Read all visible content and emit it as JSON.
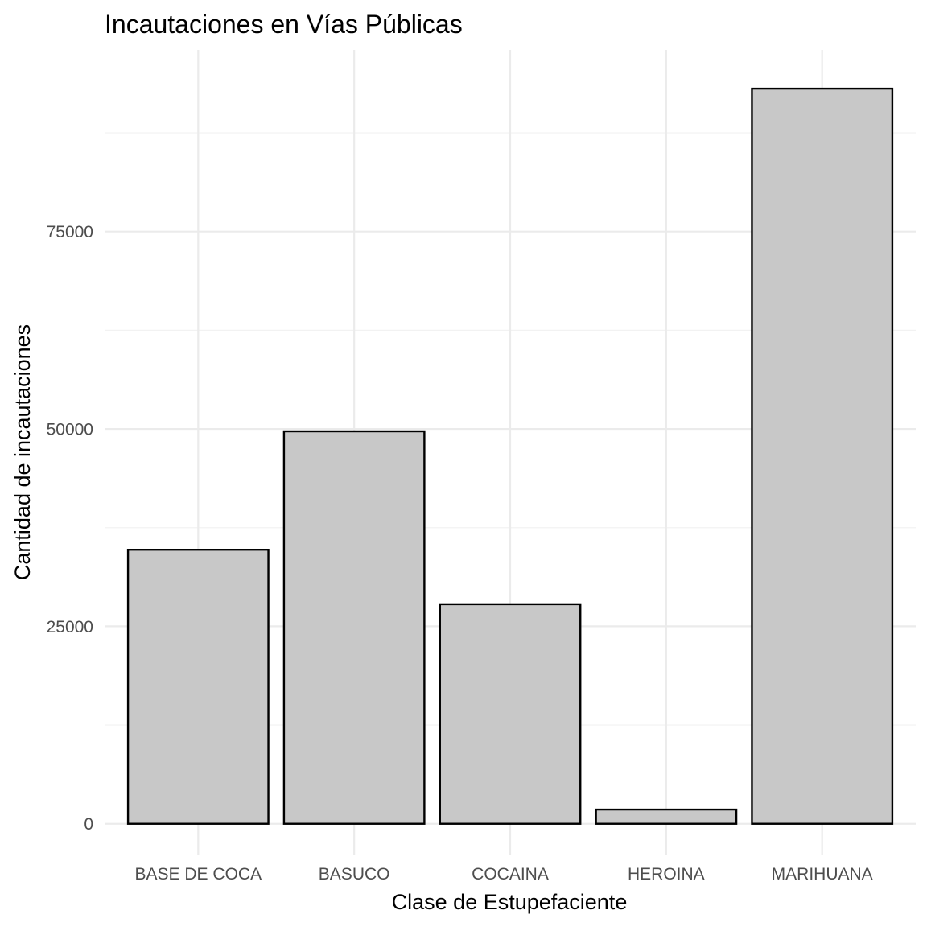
{
  "chart_data": {
    "type": "bar",
    "title": "Incautaciones en Vías Públicas",
    "xlabel": "Clase de Estupefaciente",
    "ylabel": "Cantidad de incautaciones",
    "categories": [
      "BASE DE COCA",
      "BASUCO",
      "COCAINA",
      "HEROINA",
      "MARIHUANA"
    ],
    "values": [
      34700,
      49700,
      27800,
      1800,
      93100
    ],
    "ylim": [
      -3900,
      98000
    ],
    "yticks": [
      0,
      25000,
      50000,
      75000
    ],
    "ytick_labels": [
      "0",
      "25000",
      "50000",
      "75000"
    ],
    "grid": true,
    "bar_fill": "#c8c8c8",
    "bar_outline": "#000000"
  }
}
